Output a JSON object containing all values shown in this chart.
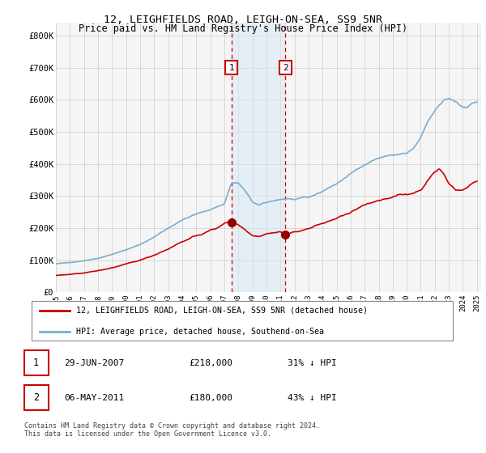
{
  "title": "12, LEIGHFIELDS ROAD, LEIGH-ON-SEA, SS9 5NR",
  "subtitle": "Price paid vs. HM Land Registry's House Price Index (HPI)",
  "ylabel_ticks": [
    "£0",
    "£100K",
    "£200K",
    "£300K",
    "£400K",
    "£500K",
    "£600K",
    "£700K",
    "£800K"
  ],
  "ytick_values": [
    0,
    100000,
    200000,
    300000,
    400000,
    500000,
    600000,
    700000,
    800000
  ],
  "ylim": [
    0,
    840000
  ],
  "sale1_x": 2007.5,
  "sale1_y": 218000,
  "sale2_x": 2011.35,
  "sale2_y": 180000,
  "red_color": "#cc0000",
  "blue_color": "#7aaecc",
  "shade_color": "#d8eaf5",
  "grid_color": "#cccccc",
  "bg_color": "#f5f5f5",
  "legend_label_red": "12, LEIGHFIELDS ROAD, LEIGH-ON-SEA, SS9 5NR (detached house)",
  "legend_label_blue": "HPI: Average price, detached house, Southend-on-Sea",
  "footer": "Contains HM Land Registry data © Crown copyright and database right 2024.\nThis data is licensed under the Open Government Licence v3.0.",
  "table_rows": [
    {
      "num": "1",
      "date": "29-JUN-2007",
      "price": "£218,000",
      "pct": "31% ↓ HPI"
    },
    {
      "num": "2",
      "date": "06-MAY-2011",
      "price": "£180,000",
      "pct": "43% ↓ HPI"
    }
  ],
  "xmin": 1995.0,
  "xmax": 2025.3,
  "xtick_years": [
    1995,
    1996,
    1997,
    1998,
    1999,
    2000,
    2001,
    2002,
    2003,
    2004,
    2005,
    2006,
    2007,
    2008,
    2009,
    2010,
    2011,
    2012,
    2013,
    2014,
    2015,
    2016,
    2017,
    2018,
    2019,
    2020,
    2021,
    2022,
    2023,
    2024,
    2025
  ]
}
